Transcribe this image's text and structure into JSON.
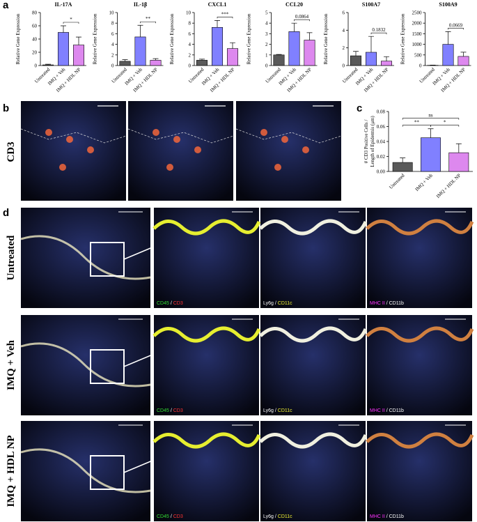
{
  "panel_labels": [
    "a",
    "b",
    "c",
    "d"
  ],
  "panel_b": {
    "row_label": "CD3"
  },
  "panel_d": {
    "rows": [
      "Untreated",
      "IMQ + Veh",
      "IMQ + HDL NP"
    ],
    "channels": [
      [
        {
          "text": "CD45",
          "color": "#33dd33"
        },
        {
          "text": " / ",
          "color": "#ffffff"
        },
        {
          "text": "CD3",
          "color": "#ff3333"
        }
      ],
      [
        {
          "text": "Ly6g",
          "color": "#ffffff"
        },
        {
          "text": " / ",
          "color": "#ffffff"
        },
        {
          "text": "CD11c",
          "color": "#eeee33"
        }
      ],
      [
        {
          "text": "MHC II",
          "color": "#ff33ff"
        },
        {
          "text": " / ",
          "color": "#ffffff"
        },
        {
          "text": "CD11b",
          "color": "#ffffff"
        }
      ]
    ]
  },
  "chart_data": [
    {
      "type": "bar",
      "title": "IL-17A",
      "ylabel": "Relative Gene Expression",
      "categories": [
        "Untreated",
        "IMQ + Veh",
        "IMQ + HDL NP"
      ],
      "colors": [
        "#5a5a5a",
        "#8080ff",
        "#dd88ee"
      ],
      "values": [
        1,
        50,
        31
      ],
      "errors": [
        1,
        10,
        12
      ],
      "ylim": [
        0,
        80
      ],
      "yticks": [
        0,
        20,
        40,
        60,
        80
      ],
      "annotations": [
        "*"
      ]
    },
    {
      "type": "bar",
      "title": "IL-1β",
      "ylabel": "Relative Gene Expression",
      "categories": [
        "Untreated",
        "IMQ + Veh",
        "IMQ + HDL NP"
      ],
      "colors": [
        "#5a5a5a",
        "#8080ff",
        "#dd88ee"
      ],
      "values": [
        0.8,
        5.4,
        1.0
      ],
      "errors": [
        0.3,
        2.2,
        0.3
      ],
      "ylim": [
        0,
        10
      ],
      "yticks": [
        0,
        2,
        4,
        6,
        8,
        10
      ],
      "annotations": [
        "**"
      ]
    },
    {
      "type": "bar",
      "title": "CXCL1",
      "ylabel": "Relative Gene Expression",
      "categories": [
        "Untreated",
        "IMQ + Veh",
        "IMQ + HDL NP"
      ],
      "colors": [
        "#5a5a5a",
        "#8080ff",
        "#dd88ee"
      ],
      "values": [
        1,
        7.2,
        3.2
      ],
      "errors": [
        0.2,
        1.3,
        1.1
      ],
      "ylim": [
        0,
        10
      ],
      "yticks": [
        0,
        2,
        4,
        6,
        8,
        10
      ],
      "annotations": [
        "***"
      ]
    },
    {
      "type": "bar",
      "title": "CCL20",
      "ylabel": "Relative Gene Expression",
      "categories": [
        "Untreated",
        "IMQ + Veh",
        "IMQ + HDL NP"
      ],
      "colors": [
        "#5a5a5a",
        "#8080ff",
        "#dd88ee"
      ],
      "values": [
        1,
        3.2,
        2.4
      ],
      "errors": [
        0.05,
        0.8,
        0.7
      ],
      "ylim": [
        0,
        5
      ],
      "yticks": [
        0,
        1,
        2,
        3,
        4,
        5
      ],
      "annotations": [
        "0.0864"
      ]
    },
    {
      "type": "bar",
      "title": "S100A7",
      "ylabel": "Relative Gene Expression",
      "categories": [
        "Untreated",
        "IMQ + Veh",
        "IMQ + HDL NP"
      ],
      "colors": [
        "#5a5a5a",
        "#8080ff",
        "#dd88ee"
      ],
      "values": [
        1.1,
        1.5,
        0.5
      ],
      "errors": [
        0.5,
        1.8,
        0.5
      ],
      "ylim": [
        0,
        6
      ],
      "yticks": [
        0,
        2,
        4,
        6
      ],
      "annotations": [
        "0.1832"
      ]
    },
    {
      "type": "bar",
      "title": "S100A9",
      "ylabel": "Relative Gene Expression",
      "categories": [
        "Untreated",
        "IMQ + Veh",
        "IMQ + HDL NP"
      ],
      "colors": [
        "#5a5a5a",
        "#8080ff",
        "#dd88ee"
      ],
      "values": [
        10,
        1000,
        430
      ],
      "errors": [
        10,
        600,
        200
      ],
      "ylim": [
        0,
        2500
      ],
      "yticks": [
        0,
        500,
        1000,
        1500,
        2000,
        2500
      ],
      "annotations": [
        "0.0669"
      ]
    },
    {
      "type": "bar",
      "ylabel": [
        "# CD3 Positive Cells /",
        "Length of Epidermis (μm)"
      ],
      "categories": [
        "Untreated",
        "IMQ + Veh",
        "IMQ + HDL NP"
      ],
      "colors": [
        "#5a5a5a",
        "#8080ff",
        "#dd88ee"
      ],
      "values": [
        0.012,
        0.045,
        0.025
      ],
      "errors": [
        0.006,
        0.012,
        0.012
      ],
      "ylim": [
        0,
        0.08
      ],
      "yticks": [
        {
          "value": 0,
          "label": "0.00"
        },
        {
          "value": 0.02,
          "label": "0.02"
        },
        {
          "value": 0.04,
          "label": "0.04"
        },
        {
          "value": 0.06,
          "label": "0.06"
        },
        {
          "value": 0.08,
          "label": "0.08"
        }
      ],
      "annotations": [
        "**",
        "ns",
        "*"
      ]
    }
  ]
}
